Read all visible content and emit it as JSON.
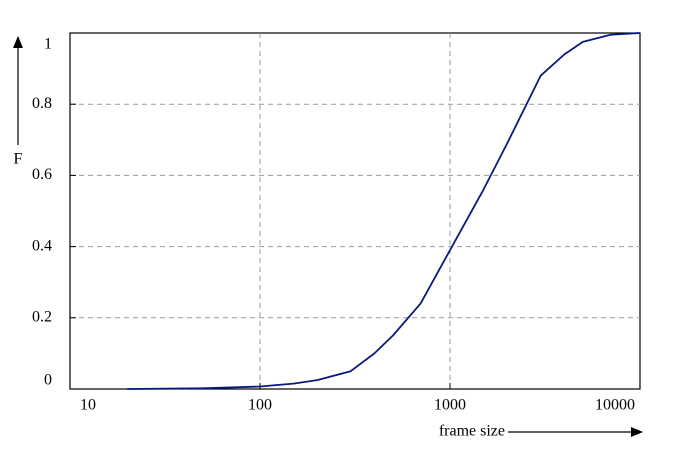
{
  "chart_data": {
    "type": "line",
    "xlabel": "frame size",
    "ylabel": "F",
    "xscale": "log",
    "grid": true,
    "x": [
      20,
      50,
      100,
      150,
      200,
      300,
      400,
      500,
      700,
      1000,
      1500,
      2000,
      3000,
      4000,
      5000,
      7000,
      10000
    ],
    "series": [
      {
        "color": "#0a1a7a",
        "values": [
          0,
          0.002,
          0.007,
          0.015,
          0.025,
          0.05,
          0.1,
          0.15,
          0.24,
          0.39,
          0.56,
          0.69,
          0.88,
          0.94,
          0.975,
          0.995,
          1.0
        ]
      }
    ],
    "xlim": [
      10,
      10000
    ],
    "xticks": [
      10,
      100,
      1000,
      10000
    ],
    "ylim": [
      0,
      1
    ],
    "yticks": [
      0,
      0.2,
      0.4,
      0.6,
      0.8,
      1
    ]
  }
}
